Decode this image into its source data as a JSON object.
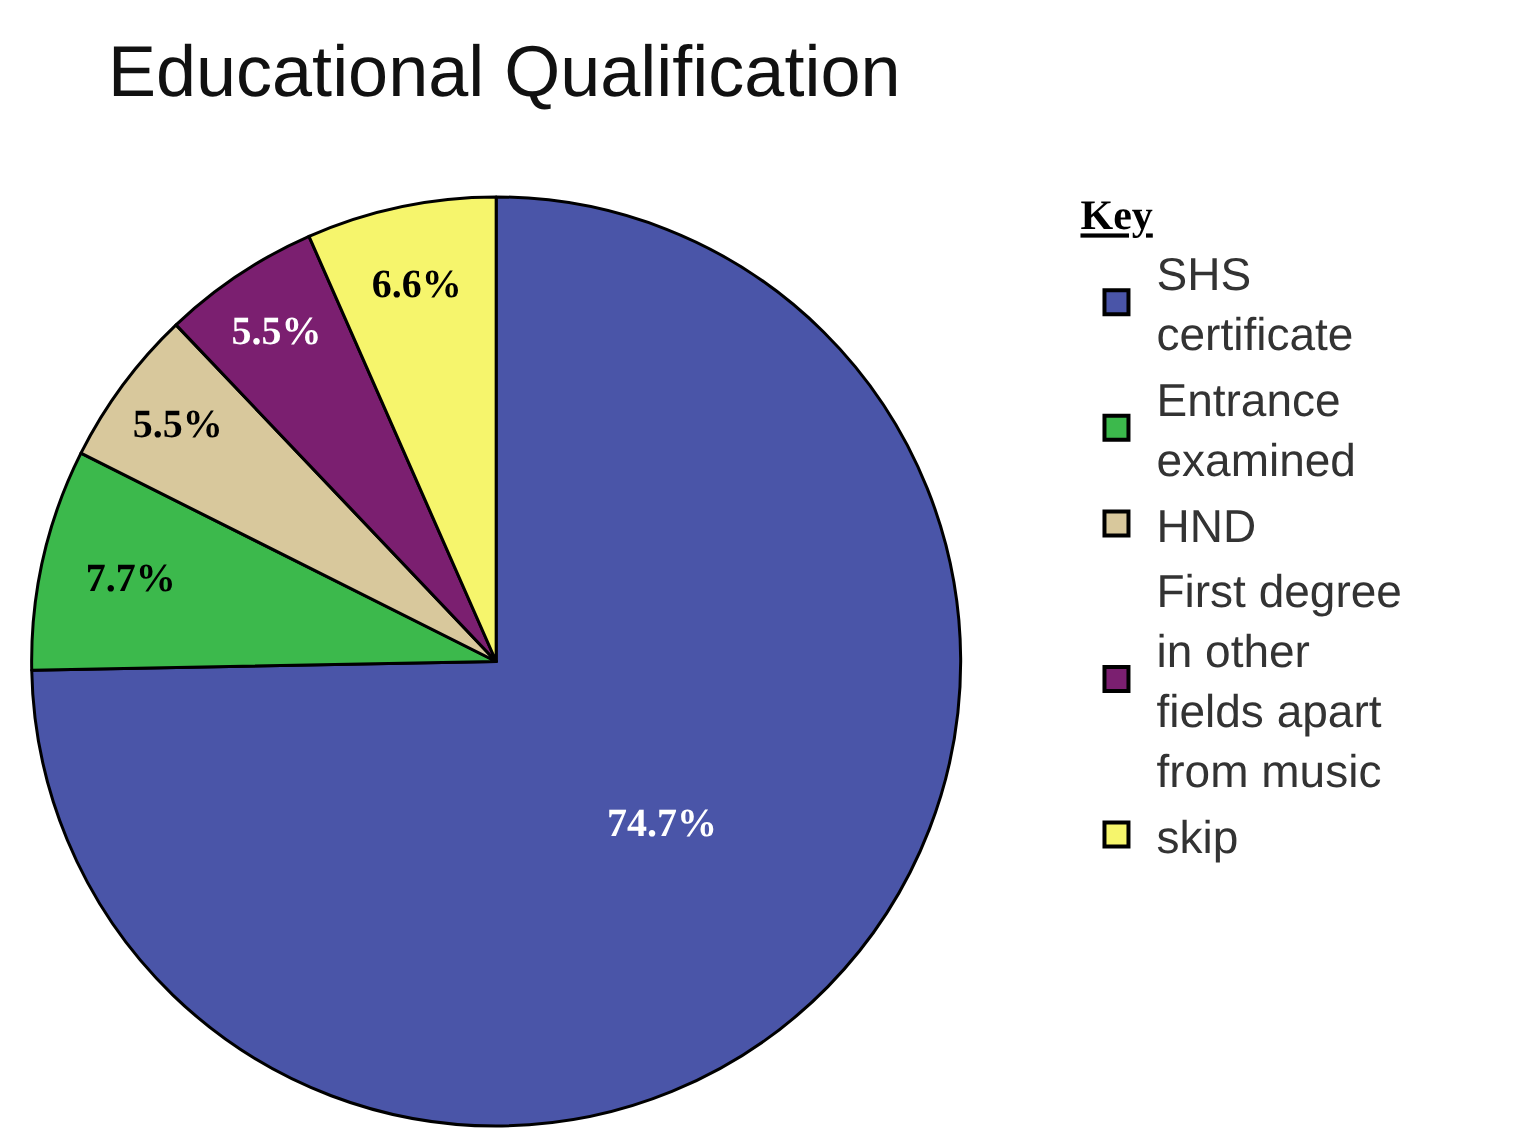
{
  "chart_data": {
    "type": "pie",
    "title": "Educational Qualification",
    "legend_title": "Key",
    "legend": "right",
    "categories": [
      "SHS certificate",
      "Entrance examined",
      "HND",
      "First degree in other fields apart from music",
      "skip"
    ],
    "values": [
      74.7,
      7.7,
      5.5,
      5.5,
      6.6
    ],
    "colors": [
      "#4a55a8",
      "#3cb94c",
      "#d8c89c",
      "#7b1f70",
      "#f6f56c"
    ],
    "value_labels": [
      "74.7%",
      "7.7%",
      "5.5%",
      "5.5%",
      "6.6%"
    ]
  }
}
